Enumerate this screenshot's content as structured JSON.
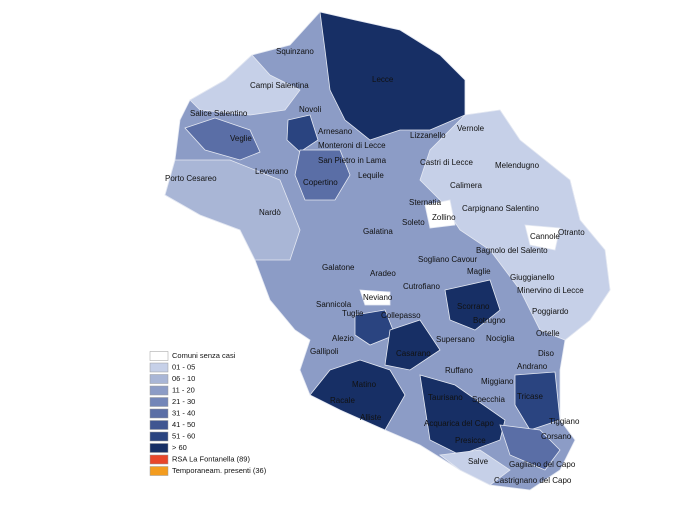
{
  "towns": [
    "Squinzano",
    "Campi Salentina",
    "Lecce",
    "Salice Salentino",
    "Novoli",
    "Veglie",
    "Arnesano",
    "Lizzanello",
    "Vernole",
    "Monteroni di Lecce",
    "San Pietro in Lama",
    "Castri di Lecce",
    "Melendugno",
    "Leverano",
    "Lequile",
    "Porto Cesareo",
    "Copertino",
    "Calimera",
    "Sternatia",
    "Nardò",
    "Carpignano Salentino",
    "Soleto",
    "Zollino",
    "Cannole",
    "Galatina",
    "Otranto",
    "Bagnolo del Salento",
    "Sogliano Cavour",
    "Aradeo",
    "Galatone",
    "Maglie",
    "Giuggianello",
    "Cutrofiano",
    "Minervino di Lecce",
    "Sannicola",
    "Neviano",
    "Scorrano",
    "Poggiardo",
    "Tuglie",
    "Collepasso",
    "Botrugno",
    "Alezio",
    "Supersano",
    "Nociglia",
    "Ortelle",
    "Gallipoli",
    "Casarano",
    "Diso",
    "Ruffano",
    "Andrano",
    "Miggiano",
    "Matino",
    "Taurisano",
    "Specchia",
    "Tricase",
    "Racale",
    "Alliste",
    "Acquarica del Capo",
    "Tiggiano",
    "Corsano",
    "Presicce",
    "Salve",
    "Gagliano del Capo",
    "Castrignano del Capo"
  ],
  "legend": {
    "entries": [
      {
        "label": "Comuni senza casi",
        "color": "#ffffff"
      },
      {
        "label": "01 - 05",
        "color": "#c6d0e8"
      },
      {
        "label": "06 - 10",
        "color": "#a9b6d6"
      },
      {
        "label": "11 - 20",
        "color": "#8c9cc6"
      },
      {
        "label": "21 - 30",
        "color": "#7386b8"
      },
      {
        "label": "31 - 40",
        "color": "#5a6ea6"
      },
      {
        "label": "41 - 50",
        "color": "#405691"
      },
      {
        "label": "51 - 60",
        "color": "#2a4480"
      },
      {
        "label": "> 60",
        "color": "#172f65"
      },
      {
        "label": "RSA La Fontanella (89)",
        "color": "#e8462a"
      },
      {
        "label": "Temporaneam. presenti (36)",
        "color": "#f39c1f"
      }
    ]
  }
}
